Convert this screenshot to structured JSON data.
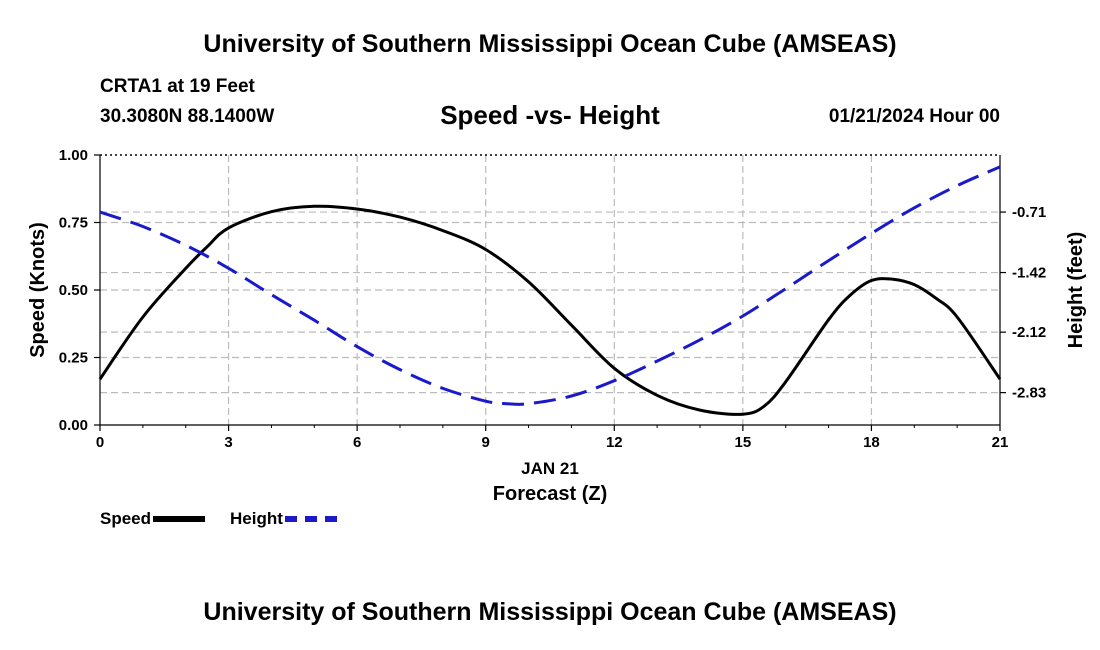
{
  "header": {
    "title": "University of Southern Mississippi Ocean Cube (AMSEAS)",
    "station": "CRTA1 at 19 Feet",
    "coordinates": "30.3080N  88.1400W",
    "chart_title": "Speed -vs- Height",
    "timestamp": "01/21/2024 Hour 00"
  },
  "footer": {
    "title": "University of Southern Mississippi Ocean Cube (AMSEAS)"
  },
  "legend": {
    "speed_label": "Speed",
    "height_label": "Height"
  },
  "colors": {
    "speed": "#000000",
    "height": "#1a1acc",
    "grid": "#bbbbbb"
  },
  "chart_data": {
    "type": "line",
    "title": "Speed -vs- Height",
    "xlabel": "Forecast (Z)",
    "xlabel_date": "JAN 21",
    "ylabel": "Speed (Knots)",
    "y2label": "Height (feet)",
    "xlim": [
      0,
      21
    ],
    "ylim": [
      0,
      1
    ],
    "y2lim": [
      -3.21,
      -0.04
    ],
    "x_ticks": [
      "0",
      "3",
      "6",
      "9",
      "12",
      "15",
      "18",
      "21"
    ],
    "x_tick_values": [
      0,
      3,
      6,
      9,
      12,
      15,
      18,
      21
    ],
    "y_ticks": [
      "0.00",
      "0.25",
      "0.50",
      "0.75",
      "1.00"
    ],
    "y_tick_values": [
      0,
      0.25,
      0.5,
      0.75,
      1.0
    ],
    "y2_ticks": [
      "-0.71",
      "-1.42",
      "-2.12",
      "-2.83"
    ],
    "y2_tick_values": [
      -0.71,
      -1.42,
      -2.12,
      -2.83
    ],
    "grid": true,
    "legend_position": "bottom-left",
    "series": [
      {
        "name": "Speed",
        "axis": "left",
        "style": "solid",
        "x": [
          0,
          1,
          2,
          2.5,
          3,
          4,
          5,
          6,
          7,
          8,
          9,
          10,
          11,
          12,
          13,
          14,
          15,
          15.5,
          16,
          17,
          17.5,
          18,
          18.5,
          19,
          19.5,
          20,
          21
        ],
        "values": [
          0.17,
          0.4,
          0.58,
          0.66,
          0.73,
          0.79,
          0.81,
          0.8,
          0.77,
          0.72,
          0.65,
          0.53,
          0.37,
          0.21,
          0.11,
          0.055,
          0.04,
          0.07,
          0.16,
          0.39,
          0.48,
          0.535,
          0.54,
          0.52,
          0.47,
          0.4,
          0.17
        ]
      },
      {
        "name": "Height",
        "axis": "right",
        "style": "dashed",
        "x": [
          0,
          1,
          2,
          3,
          4,
          5,
          6,
          7,
          8,
          9,
          9.5,
          10,
          11,
          12,
          13,
          14,
          15,
          16,
          17,
          18,
          19,
          20,
          21
        ],
        "values": [
          -0.71,
          -0.88,
          -1.1,
          -1.37,
          -1.68,
          -1.98,
          -2.29,
          -2.56,
          -2.78,
          -2.93,
          -2.96,
          -2.96,
          -2.87,
          -2.69,
          -2.46,
          -2.21,
          -1.93,
          -1.61,
          -1.28,
          -0.96,
          -0.66,
          -0.4,
          -0.18
        ]
      }
    ]
  }
}
